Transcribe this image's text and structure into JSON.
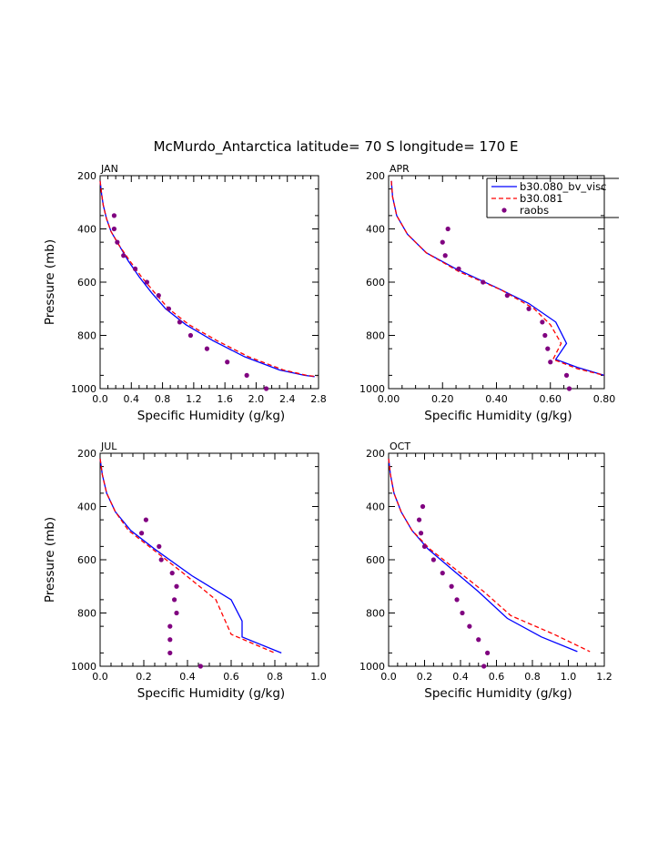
{
  "title": "McMurdo_Antarctica  latitude= 70 S longitude= 170 E",
  "colors": {
    "b30_080": "#0000ff",
    "b30_081": "#ff0000",
    "raobs": "#800080"
  },
  "legend": {
    "items": [
      "b30.080_bv_visc",
      "b30.081",
      "raobs"
    ],
    "position": "top-right of APR panel"
  },
  "chart_data": [
    {
      "type": "line",
      "panel": "JAN",
      "xlabel": "Specific Humidity (g/kg)",
      "ylabel": "Pressure (mb)",
      "xlim": [
        0,
        2.8
      ],
      "ylim": [
        1000,
        200
      ],
      "xticks": [
        "0.0",
        "0.4",
        "0.8",
        "1.2",
        "1.6",
        "2.0",
        "2.4",
        "2.8"
      ],
      "yticks": [
        "200",
        "400",
        "600",
        "800",
        "1000"
      ],
      "series": [
        {
          "name": "b30.080_bv_visc",
          "style": "solid",
          "points": [
            [
              0.0,
              220
            ],
            [
              0.02,
              270
            ],
            [
              0.04,
              310
            ],
            [
              0.08,
              360
            ],
            [
              0.14,
              410
            ],
            [
              0.24,
              460
            ],
            [
              0.36,
              520
            ],
            [
              0.5,
              580
            ],
            [
              0.66,
              640
            ],
            [
              0.84,
              700
            ],
            [
              1.1,
              760
            ],
            [
              1.45,
              820
            ],
            [
              1.85,
              880
            ],
            [
              2.3,
              930
            ],
            [
              2.62,
              950
            ],
            [
              2.75,
              955
            ]
          ]
        },
        {
          "name": "b30.081",
          "style": "dashed",
          "points": [
            [
              0.0,
              220
            ],
            [
              0.02,
              270
            ],
            [
              0.04,
              310
            ],
            [
              0.08,
              360
            ],
            [
              0.14,
              410
            ],
            [
              0.24,
              460
            ],
            [
              0.38,
              520
            ],
            [
              0.53,
              580
            ],
            [
              0.7,
              640
            ],
            [
              0.88,
              700
            ],
            [
              1.14,
              760
            ],
            [
              1.5,
              820
            ],
            [
              1.9,
              880
            ],
            [
              2.35,
              930
            ],
            [
              2.65,
              950
            ],
            [
              2.78,
              955
            ]
          ]
        },
        {
          "name": "raobs",
          "style": "dots",
          "points": [
            [
              0.18,
              350
            ],
            [
              0.18,
              400
            ],
            [
              0.22,
              450
            ],
            [
              0.3,
              500
            ],
            [
              0.45,
              550
            ],
            [
              0.6,
              600
            ],
            [
              0.75,
              650
            ],
            [
              0.88,
              700
            ],
            [
              1.02,
              750
            ],
            [
              1.16,
              800
            ],
            [
              1.37,
              850
            ],
            [
              1.63,
              900
            ],
            [
              1.88,
              950
            ],
            [
              2.13,
              1000
            ]
          ]
        }
      ]
    },
    {
      "type": "line",
      "panel": "APR",
      "xlabel": "Specific Humidity (g/kg)",
      "ylabel": "",
      "xlim": [
        0,
        0.8
      ],
      "ylim": [
        1000,
        200
      ],
      "xticks": [
        "0.00",
        "0.20",
        "0.40",
        "0.60",
        "0.80"
      ],
      "yticks": [
        "200",
        "400",
        "600",
        "800",
        "1000"
      ],
      "series": [
        {
          "name": "b30.080_bv_visc",
          "style": "solid",
          "points": [
            [
              0.01,
              220
            ],
            [
              0.015,
              280
            ],
            [
              0.03,
              350
            ],
            [
              0.07,
              420
            ],
            [
              0.14,
              490
            ],
            [
              0.25,
              550
            ],
            [
              0.4,
              620
            ],
            [
              0.52,
              680
            ],
            [
              0.62,
              750
            ],
            [
              0.66,
              830
            ],
            [
              0.62,
              890
            ],
            [
              0.7,
              920
            ],
            [
              0.8,
              950
            ]
          ]
        },
        {
          "name": "b30.081",
          "style": "dashed",
          "points": [
            [
              0.01,
              220
            ],
            [
              0.015,
              280
            ],
            [
              0.03,
              350
            ],
            [
              0.07,
              420
            ],
            [
              0.14,
              490
            ],
            [
              0.26,
              560
            ],
            [
              0.42,
              630
            ],
            [
              0.54,
              700
            ],
            [
              0.6,
              760
            ],
            [
              0.64,
              830
            ],
            [
              0.61,
              890
            ],
            [
              0.7,
              925
            ],
            [
              0.8,
              950
            ]
          ]
        },
        {
          "name": "raobs",
          "style": "dots",
          "points": [
            [
              0.22,
              400
            ],
            [
              0.2,
              450
            ],
            [
              0.21,
              500
            ],
            [
              0.26,
              550
            ],
            [
              0.35,
              600
            ],
            [
              0.44,
              650
            ],
            [
              0.52,
              700
            ],
            [
              0.57,
              750
            ],
            [
              0.58,
              800
            ],
            [
              0.59,
              850
            ],
            [
              0.6,
              900
            ],
            [
              0.66,
              950
            ],
            [
              0.67,
              1000
            ]
          ]
        }
      ]
    },
    {
      "type": "line",
      "panel": "JUL",
      "xlabel": "Specific Humidity (g/kg)",
      "ylabel": "Pressure (mb)",
      "xlim": [
        0,
        1.0
      ],
      "ylim": [
        1000,
        200
      ],
      "xticks": [
        "0.0",
        "0.2",
        "0.4",
        "0.6",
        "0.8",
        "1.0"
      ],
      "yticks": [
        "200",
        "400",
        "600",
        "800",
        "1000"
      ],
      "series": [
        {
          "name": "b30.080_bv_visc",
          "style": "solid",
          "points": [
            [
              0.0,
              220
            ],
            [
              0.01,
              280
            ],
            [
              0.03,
              350
            ],
            [
              0.07,
              420
            ],
            [
              0.14,
              490
            ],
            [
              0.25,
              560
            ],
            [
              0.42,
              660
            ],
            [
              0.6,
              750
            ],
            [
              0.65,
              830
            ],
            [
              0.65,
              890
            ],
            [
              0.83,
              950
            ]
          ]
        },
        {
          "name": "b30.081",
          "style": "dashed",
          "points": [
            [
              0.0,
              220
            ],
            [
              0.01,
              280
            ],
            [
              0.03,
              350
            ],
            [
              0.07,
              420
            ],
            [
              0.13,
              490
            ],
            [
              0.24,
              560
            ],
            [
              0.38,
              650
            ],
            [
              0.53,
              750
            ],
            [
              0.6,
              880
            ],
            [
              0.8,
              950
            ]
          ]
        },
        {
          "name": "raobs",
          "style": "dots",
          "points": [
            [
              0.21,
              450
            ],
            [
              0.19,
              500
            ],
            [
              0.27,
              550
            ],
            [
              0.28,
              600
            ],
            [
              0.33,
              650
            ],
            [
              0.35,
              700
            ],
            [
              0.34,
              750
            ],
            [
              0.35,
              800
            ],
            [
              0.32,
              850
            ],
            [
              0.32,
              900
            ],
            [
              0.32,
              950
            ],
            [
              0.46,
              1000
            ]
          ]
        }
      ]
    },
    {
      "type": "line",
      "panel": "OCT",
      "xlabel": "Specific Humidity (g/kg)",
      "ylabel": "",
      "xlim": [
        0,
        1.2
      ],
      "ylim": [
        1000,
        200
      ],
      "xticks": [
        "0.0",
        "0.2",
        "0.4",
        "0.6",
        "0.8",
        "1.0",
        "1.2"
      ],
      "yticks": [
        "200",
        "400",
        "600",
        "800",
        "1000"
      ],
      "series": [
        {
          "name": "b30.080_bv_visc",
          "style": "solid",
          "points": [
            [
              0.0,
              220
            ],
            [
              0.01,
              280
            ],
            [
              0.03,
              350
            ],
            [
              0.07,
              420
            ],
            [
              0.13,
              490
            ],
            [
              0.22,
              560
            ],
            [
              0.36,
              640
            ],
            [
              0.5,
              720
            ],
            [
              0.66,
              820
            ],
            [
              0.85,
              890
            ],
            [
              1.05,
              945
            ]
          ]
        },
        {
          "name": "b30.081",
          "style": "dashed",
          "points": [
            [
              0.0,
              220
            ],
            [
              0.01,
              280
            ],
            [
              0.03,
              350
            ],
            [
              0.07,
              420
            ],
            [
              0.13,
              490
            ],
            [
              0.23,
              560
            ],
            [
              0.38,
              640
            ],
            [
              0.53,
              720
            ],
            [
              0.68,
              810
            ],
            [
              0.92,
              880
            ],
            [
              1.12,
              945
            ]
          ]
        },
        {
          "name": "raobs",
          "style": "dots",
          "points": [
            [
              0.19,
              400
            ],
            [
              0.17,
              450
            ],
            [
              0.18,
              500
            ],
            [
              0.2,
              550
            ],
            [
              0.25,
              600
            ],
            [
              0.3,
              650
            ],
            [
              0.35,
              700
            ],
            [
              0.38,
              750
            ],
            [
              0.41,
              800
            ],
            [
              0.45,
              850
            ],
            [
              0.5,
              900
            ],
            [
              0.55,
              950
            ],
            [
              0.53,
              1000
            ]
          ]
        }
      ]
    }
  ]
}
